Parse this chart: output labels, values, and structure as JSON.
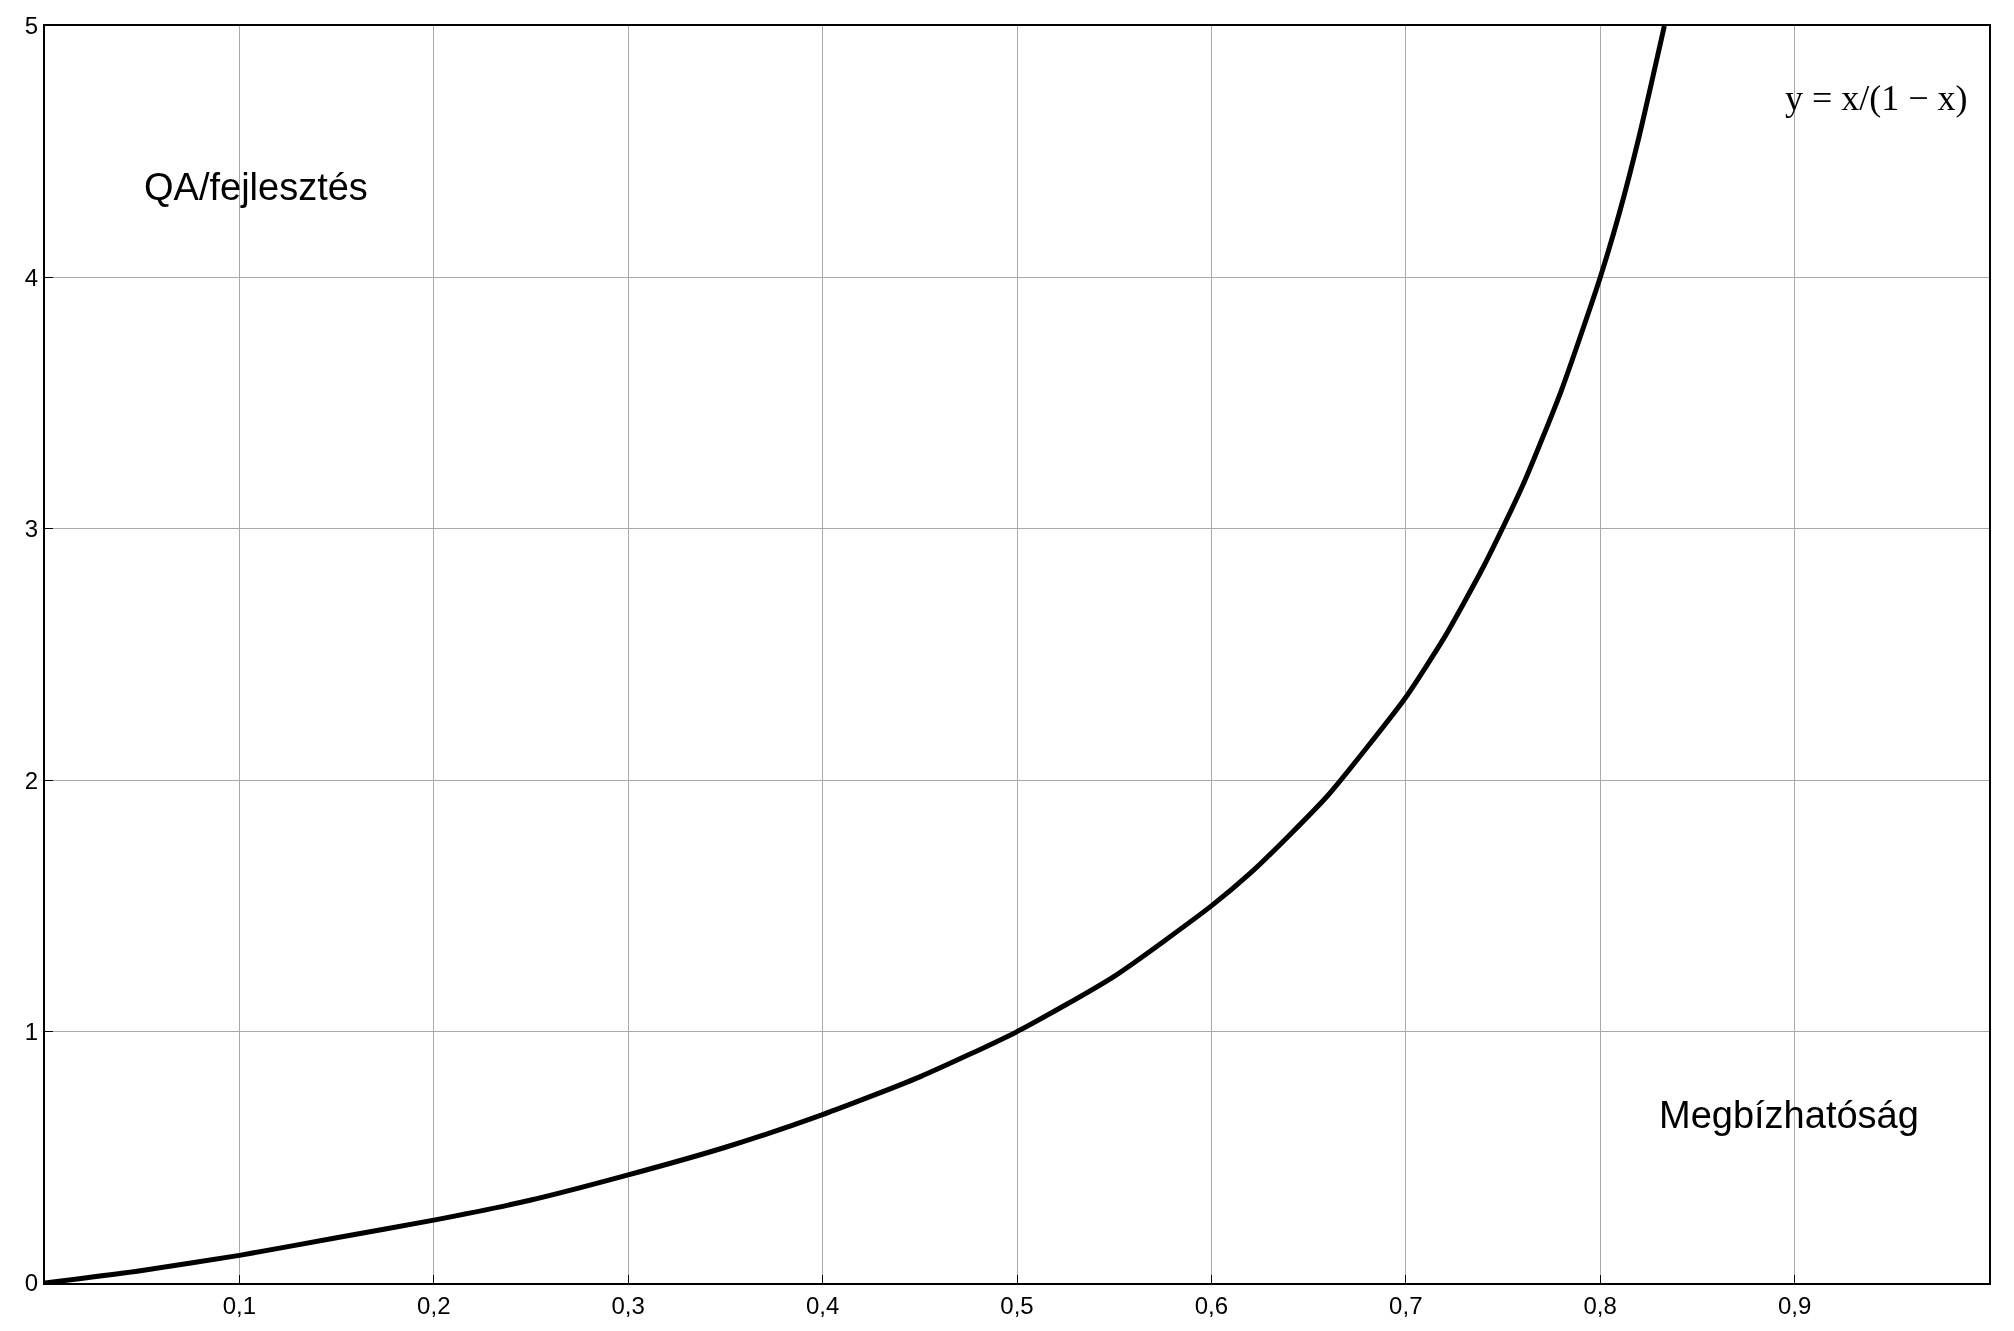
{
  "chart_data": {
    "type": "line",
    "xlabel": "Megbízhatóság",
    "ylabel": "QA/fejlesztés",
    "annotations": [
      "y = x/(1 − x)"
    ],
    "x": [
      0,
      0.05,
      0.1,
      0.15,
      0.2,
      0.25,
      0.3,
      0.35,
      0.4,
      0.45,
      0.5,
      0.55,
      0.6,
      0.62,
      0.64,
      0.66,
      0.68,
      0.7,
      0.72,
      0.74,
      0.76,
      0.78,
      0.8,
      0.81,
      0.82,
      0.833
    ],
    "series": [
      {
        "color": "#000000",
        "values": [
          0,
          0.05,
          0.11,
          0.18,
          0.25,
          0.33,
          0.43,
          0.54,
          0.67,
          0.82,
          1,
          1.22,
          1.5,
          1.63,
          1.78,
          1.94,
          2.13,
          2.33,
          2.57,
          2.85,
          3.17,
          3.55,
          4,
          4.26,
          4.56,
          5
        ]
      }
    ],
    "xlim": [
      0,
      1
    ],
    "ylim": [
      0,
      5
    ],
    "xticks": [
      {
        "value": 0.1,
        "label": "0,1"
      },
      {
        "value": 0.2,
        "label": "0,2"
      },
      {
        "value": 0.3,
        "label": "0,3"
      },
      {
        "value": 0.4,
        "label": "0,4"
      },
      {
        "value": 0.5,
        "label": "0,5"
      },
      {
        "value": 0.6,
        "label": "0,6"
      },
      {
        "value": 0.7,
        "label": "0,7"
      },
      {
        "value": 0.8,
        "label": "0,8"
      },
      {
        "value": 0.9,
        "label": "0,9"
      }
    ],
    "yticks": [
      0,
      1,
      2,
      3,
      4,
      5
    ],
    "grid": true,
    "marker": "none",
    "line_style": "solid"
  }
}
